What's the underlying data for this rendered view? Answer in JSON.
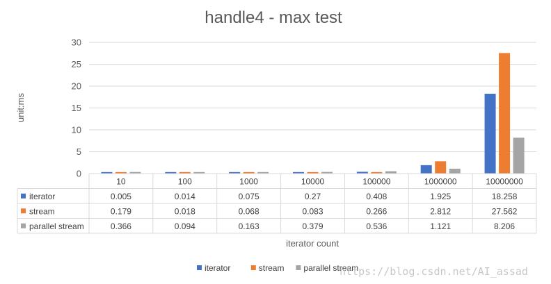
{
  "chart_data": {
    "type": "bar",
    "title": "handle4 - max test",
    "xlabel": "iterator count",
    "ylabel": "unit:ms",
    "ylim": [
      0,
      30
    ],
    "yticks": [
      0,
      5,
      10,
      15,
      20,
      25,
      30
    ],
    "grid": true,
    "legend_position": "bottom",
    "categories": [
      "10",
      "100",
      "1000",
      "10000",
      "100000",
      "1000000",
      "10000000"
    ],
    "series": [
      {
        "name": "iterator",
        "color": "#4472C4",
        "values": [
          0.005,
          0.014,
          0.075,
          0.27,
          0.408,
          1.925,
          18.258
        ],
        "labels": [
          "0.005",
          "0.014",
          "0.075",
          "0.27",
          "0.408",
          "1.925",
          "18.258"
        ]
      },
      {
        "name": "stream",
        "color": "#ED7D31",
        "values": [
          0.179,
          0.018,
          0.068,
          0.083,
          0.266,
          2.812,
          27.562
        ],
        "labels": [
          "0.179",
          "0.018",
          "0.068",
          "0.083",
          "0.266",
          "2.812",
          "27.562"
        ]
      },
      {
        "name": "parallel stream",
        "color": "#A5A5A5",
        "values": [
          0.366,
          0.094,
          0.163,
          0.379,
          0.536,
          1.121,
          8.206
        ],
        "labels": [
          "0.366",
          "0.094",
          "0.163",
          "0.379",
          "0.536",
          "1.121",
          "8.206"
        ]
      }
    ]
  },
  "watermark": "https://blog.csdn.net/AI_assad"
}
